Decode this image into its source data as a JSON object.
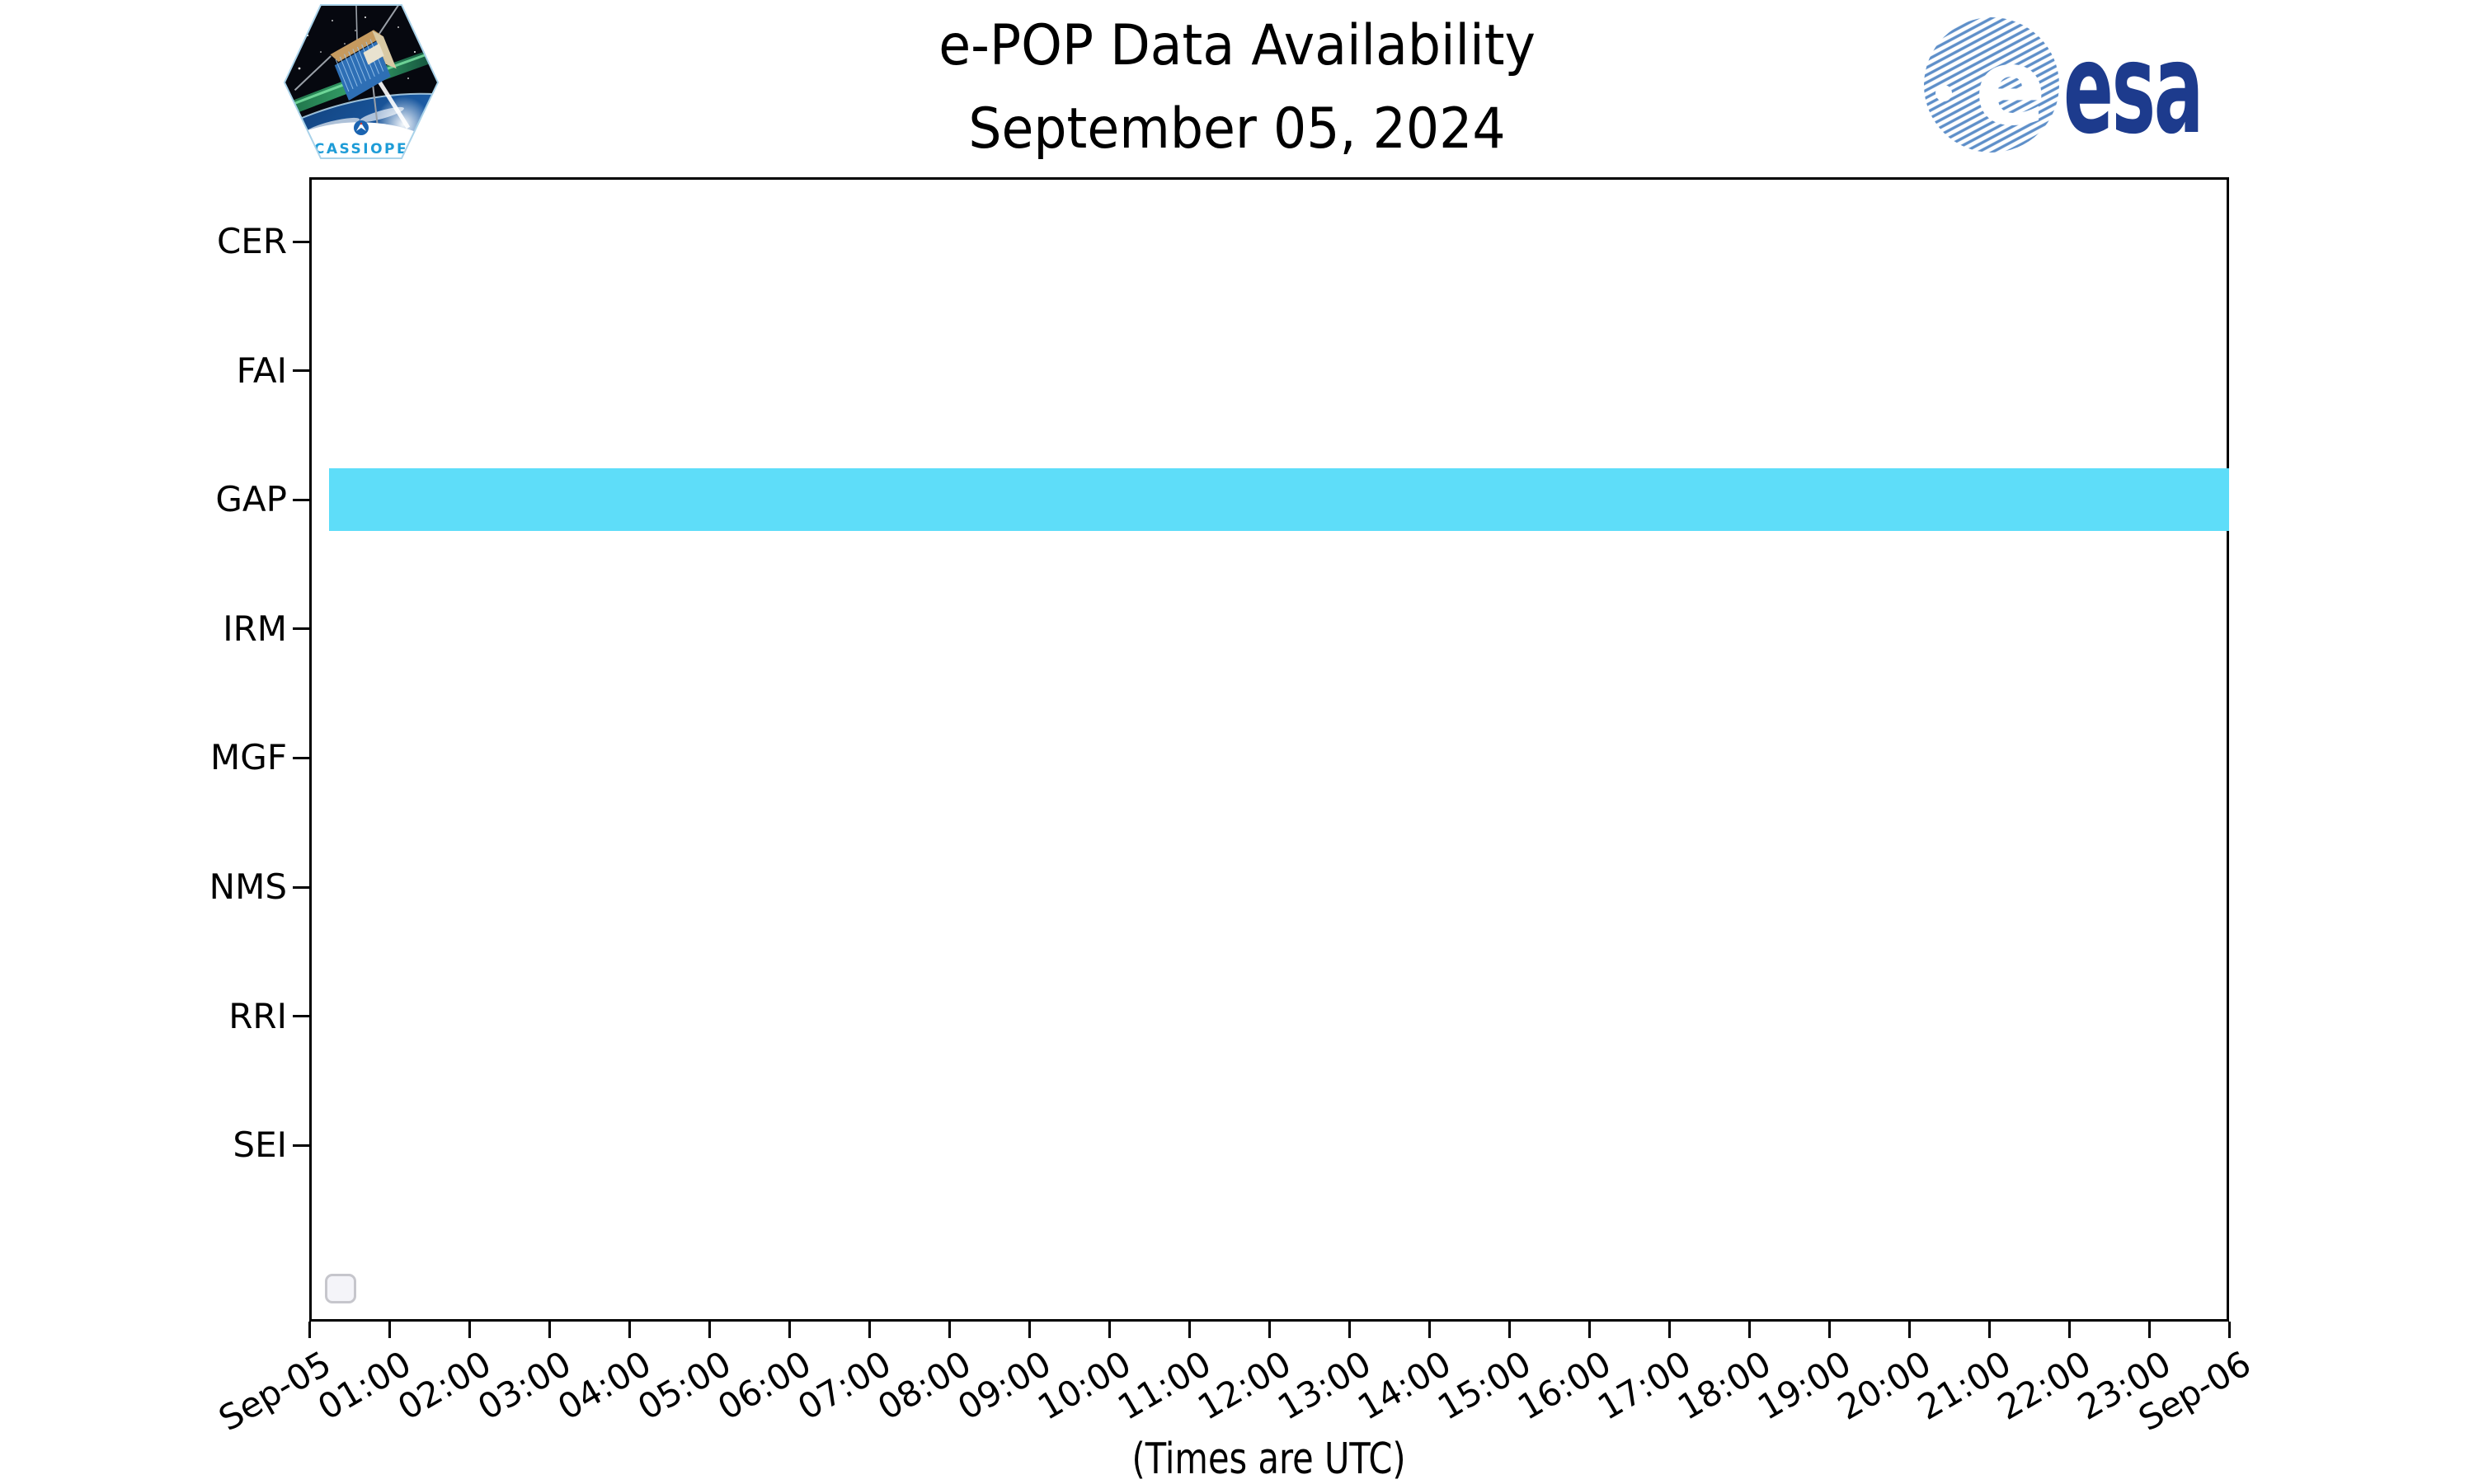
{
  "header": {
    "title_line1": "e-POP Data Availability",
    "title_line2": "September 05, 2024",
    "cassiope_patch_text": "CASSIOPE",
    "esa_wordmark": "esa",
    "esa_globe_letter": "e"
  },
  "footer": {
    "caption": "(Times are UTC)"
  },
  "chart_data": {
    "type": "bar",
    "subtype": "availability-timeline",
    "title": "e-POP Data Availability",
    "subtitle": "September 05, 2024",
    "xlabel": "(Times are UTC)",
    "ylabel": "",
    "instruments": [
      "CER",
      "FAI",
      "GAP",
      "IRM",
      "MGF",
      "NMS",
      "RRI",
      "SEI"
    ],
    "x_tick_labels": [
      "Sep-05",
      "01:00",
      "02:00",
      "03:00",
      "04:00",
      "05:00",
      "06:00",
      "07:00",
      "08:00",
      "09:00",
      "10:00",
      "11:00",
      "12:00",
      "13:00",
      "14:00",
      "15:00",
      "16:00",
      "17:00",
      "18:00",
      "19:00",
      "20:00",
      "21:00",
      "22:00",
      "23:00",
      "Sep-06"
    ],
    "x_range_hours": [
      0,
      24
    ],
    "x_tick_rotation_deg": 30,
    "grid": false,
    "legend": "empty-box-bottom-left",
    "segments": [
      {
        "instrument": "GAP",
        "start_minutes": 15,
        "end_minutes": 1440,
        "start": "00:15",
        "end": "24:00",
        "color": "#5EDDF9"
      }
    ],
    "colors": {
      "bar": "#5EDDF9",
      "spine": "#000000",
      "background": "#ffffff",
      "esa_navy": "#1d3b8d",
      "esa_stripe_blue": "#5e8fc9",
      "cassiope_text_blue": "#1e9cd7"
    }
  }
}
